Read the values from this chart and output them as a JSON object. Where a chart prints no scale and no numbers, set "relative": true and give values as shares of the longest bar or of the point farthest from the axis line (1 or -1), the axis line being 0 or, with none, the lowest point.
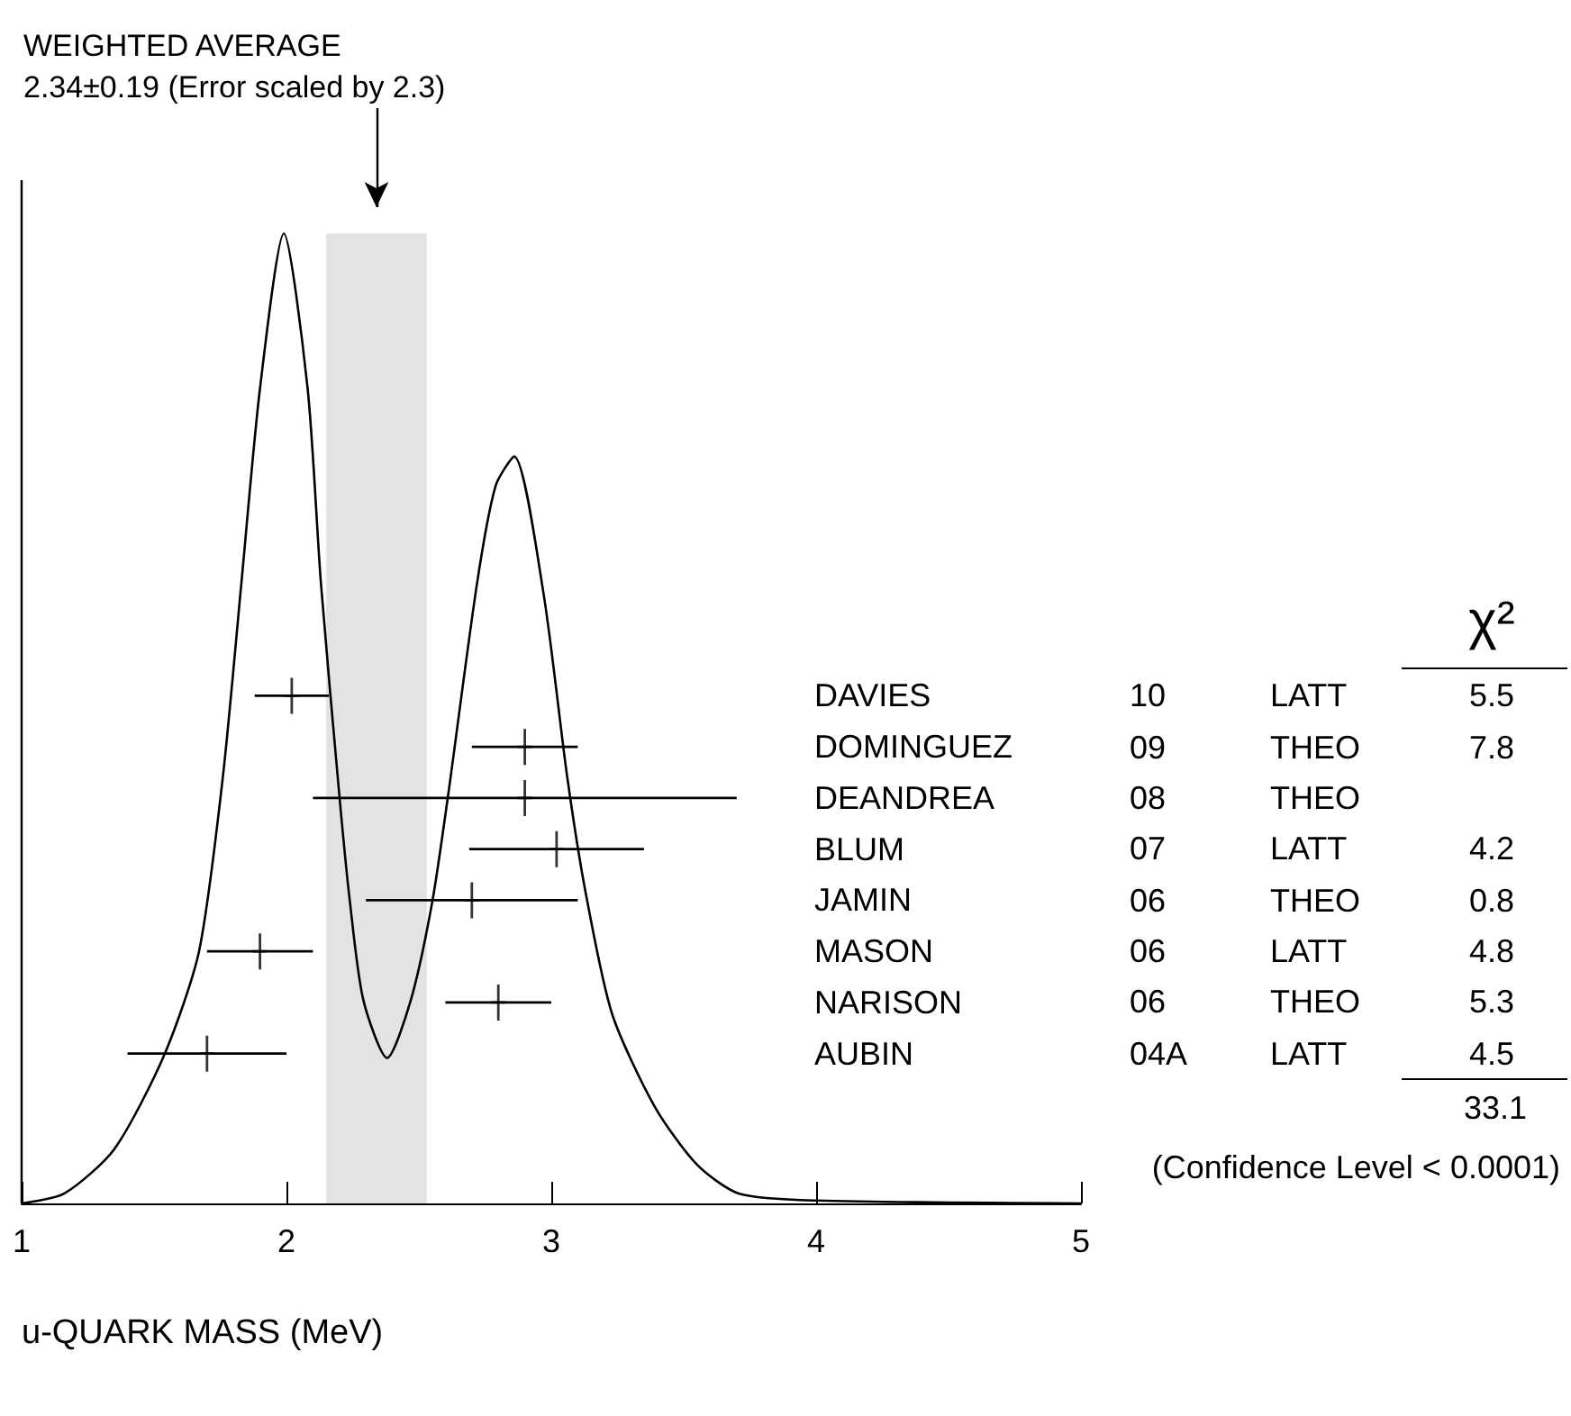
{
  "chart_data": [
    {
      "type": "line",
      "title": "WEIGHTED AVERAGE",
      "subtitle": "2.34±0.19 (Error scaled by 2.3)",
      "xlabel": "u-QUARK MASS (MeV)",
      "relative": true,
      "color": "#000000",
      "x": [
        1.0,
        1.16,
        1.35,
        1.54,
        1.67,
        1.76,
        1.83,
        1.9,
        1.99,
        2.08,
        2.13,
        2.2,
        2.24,
        2.29,
        2.38,
        2.47,
        2.55,
        2.61,
        2.72,
        2.79,
        2.86,
        2.97,
        3.06,
        3.13,
        3.23,
        3.39,
        3.55,
        3.71,
        4.0,
        5.0
      ],
      "values": [
        0,
        0.01,
        0.056,
        0.154,
        0.26,
        0.44,
        0.64,
        0.84,
        1,
        0.84,
        0.64,
        0.42,
        0.31,
        0.21,
        0.15,
        0.21,
        0.31,
        0.42,
        0.64,
        0.74,
        0.77,
        0.63,
        0.44,
        0.32,
        0.195,
        0.1,
        0.04,
        0.01,
        0.003,
        0
      ],
      "xlim": [
        1,
        5
      ],
      "xticks": [
        1,
        2,
        3,
        4,
        5
      ],
      "bands": [
        {
          "axis": "x",
          "from": 2.15,
          "to": 2.53,
          "color": "#e3e3e3"
        }
      ]
    },
    {
      "type": "scatter",
      "orientation": "horizontal",
      "color": "#000000",
      "tick_labels": "y",
      "marker": "cross",
      "categories": [
        "DAVIES",
        "DOMINGUEZ",
        "DEANDREA",
        "BLUM",
        "JAMIN",
        "MASON",
        "NARISON",
        "AUBIN"
      ],
      "values": [
        2.02,
        2.9,
        2.9,
        3.02,
        2.7,
        1.9,
        2.8,
        1.7
      ],
      "errors": [
        0.14,
        0.2,
        0.8,
        0.33,
        0.4,
        0.2,
        0.2,
        0.3
      ],
      "xlim": [
        1,
        5
      ],
      "annotations": [
        "χ²",
        "33.1",
        "(Confidence Level < 0.0001)",
        "10 LATT 5.5",
        "09 THEO 7.8",
        "08 THEO",
        "07 LATT 4.2",
        "06 THEO 0.8",
        "06 LATT 4.8",
        "06 THEO 5.3",
        "04A LATT 4.5"
      ]
    }
  ]
}
